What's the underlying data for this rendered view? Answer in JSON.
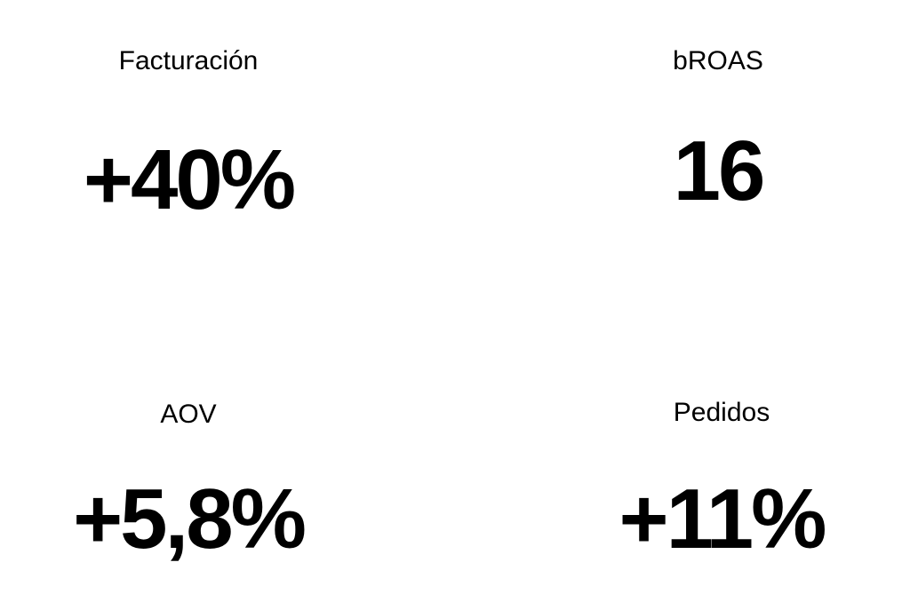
{
  "metrics": [
    {
      "label": "Facturación",
      "value": "+40%"
    },
    {
      "label": "bROAS",
      "value": "16"
    },
    {
      "label": "AOV",
      "value": "+5,8%"
    },
    {
      "label": "Pedidos",
      "value": "+11%"
    }
  ]
}
